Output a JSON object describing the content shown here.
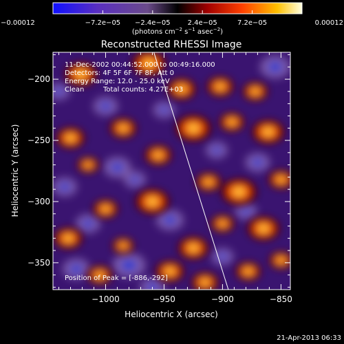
{
  "chart_data": {
    "type": "heatmap",
    "title": "Reconstructed RHESSI Image",
    "xlabel": "Heliocentric X (arcsec)",
    "ylabel": "Heliocentric Y (arcsec)",
    "xlim": [
      -1045,
      -842
    ],
    "ylim": [
      -372,
      -178
    ],
    "x_ticks": [
      -1000,
      -950,
      -900,
      -850
    ],
    "x_tick_labels": [
      "−1000",
      "−950",
      "−900",
      "−850"
    ],
    "y_ticks": [
      -200,
      -250,
      -300,
      -350
    ],
    "y_tick_labels": [
      "−200",
      "−250",
      "−300",
      "−350"
    ],
    "colorbar": {
      "range": [
        -0.00012,
        0.00012
      ],
      "tick_labels": [
        "−0.00012",
        "−7.2e−05",
        "−2.4e−05",
        "2.4e−05",
        "7.2e−05",
        "0.00012"
      ],
      "unit_label_main": "(photons cm",
      "unit_sup1": "−2",
      "unit_mid": " s",
      "unit_sup2": "−1",
      "unit_mid2": " asec",
      "unit_sup3": "−2",
      "unit_end": ")"
    },
    "annotations": {
      "line1": "11-Dec-2002 00:44:52.000 to 00:49:16.000",
      "line2": "Detectors: 4F 5F 6F 7F 8F, Att 0",
      "line3": "Energy Range: 12.0 - 25.0 keV",
      "line4_a": "Clean",
      "line4_b": "Total counts: 4.27E+03",
      "peak": "Position of Peak = [-886,-292]"
    },
    "limb_line": [
      [
        -963,
        -165
      ],
      [
        -895,
        -372
      ]
    ],
    "peaks": [
      {
        "x": -1021,
        "y": -196,
        "v": 0.9
      },
      {
        "x": -963,
        "y": -187,
        "v": 0.95
      },
      {
        "x": -935,
        "y": -208,
        "v": 0.8
      },
      {
        "x": -902,
        "y": -206,
        "v": 0.75
      },
      {
        "x": -872,
        "y": -210,
        "v": 0.7
      },
      {
        "x": -1030,
        "y": -248,
        "v": 0.8
      },
      {
        "x": -985,
        "y": -240,
        "v": 0.75
      },
      {
        "x": -925,
        "y": -240,
        "v": 1.0
      },
      {
        "x": -892,
        "y": -235,
        "v": 0.7
      },
      {
        "x": -861,
        "y": -243,
        "v": 0.9
      },
      {
        "x": -1015,
        "y": -270,
        "v": 0.6
      },
      {
        "x": -955,
        "y": -262,
        "v": 0.75
      },
      {
        "x": -912,
        "y": -284,
        "v": 0.7
      },
      {
        "x": -886,
        "y": -292,
        "v": 1.0
      },
      {
        "x": -850,
        "y": -282,
        "v": 0.7
      },
      {
        "x": -1000,
        "y": -306,
        "v": 0.7
      },
      {
        "x": -960,
        "y": -300,
        "v": 0.95
      },
      {
        "x": -865,
        "y": -322,
        "v": 0.9
      },
      {
        "x": -1032,
        "y": -330,
        "v": 0.8
      },
      {
        "x": -985,
        "y": -336,
        "v": 0.6
      },
      {
        "x": -925,
        "y": -338,
        "v": 0.85
      },
      {
        "x": -900,
        "y": -318,
        "v": 0.65
      },
      {
        "x": -945,
        "y": -357,
        "v": 0.8
      },
      {
        "x": -915,
        "y": -366,
        "v": 0.75
      },
      {
        "x": -878,
        "y": -357,
        "v": 0.7
      },
      {
        "x": -1005,
        "y": -360,
        "v": 0.7
      },
      {
        "x": -850,
        "y": -348,
        "v": 0.65
      }
    ],
    "troughs": [
      {
        "x": -980,
        "y": -352,
        "v": 1.0
      },
      {
        "x": -1025,
        "y": -355,
        "v": 0.8
      },
      {
        "x": -945,
        "y": -315,
        "v": 0.8
      },
      {
        "x": -1040,
        "y": -210,
        "v": 0.6
      },
      {
        "x": -855,
        "y": -190,
        "v": 0.9
      },
      {
        "x": -870,
        "y": -268,
        "v": 0.7
      },
      {
        "x": -990,
        "y": -272,
        "v": 0.8
      },
      {
        "x": -1000,
        "y": -222,
        "v": 0.7
      },
      {
        "x": -950,
        "y": -225,
        "v": 0.6
      },
      {
        "x": -905,
        "y": -258,
        "v": 0.6
      },
      {
        "x": -1035,
        "y": -288,
        "v": 0.7
      },
      {
        "x": -975,
        "y": -282,
        "v": 0.6
      },
      {
        "x": -880,
        "y": -308,
        "v": 0.6
      },
      {
        "x": -1015,
        "y": -318,
        "v": 0.7
      },
      {
        "x": -900,
        "y": -345,
        "v": 0.6
      },
      {
        "x": -960,
        "y": -370,
        "v": 0.7
      }
    ]
  },
  "footer": {
    "timestamp": "21-Apr-2013 06:33"
  }
}
